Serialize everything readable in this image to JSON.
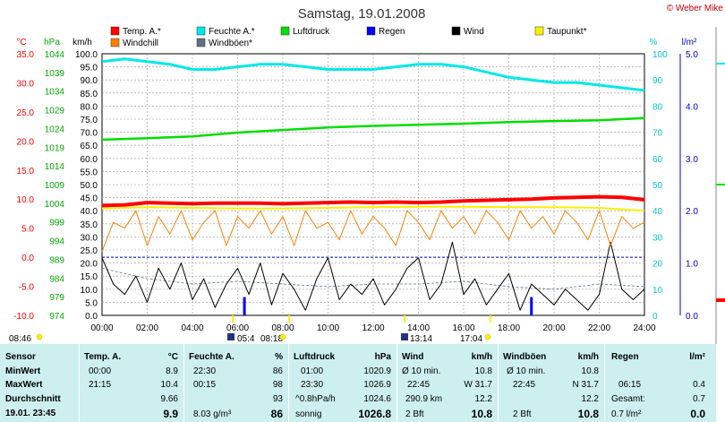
{
  "title": "Samstag, 19.01.2008",
  "copyright": "© Weber Mike",
  "legend": [
    {
      "label": "Temp. A.*",
      "color": "#ff0000"
    },
    {
      "label": "Feuchte A.*",
      "color": "#00e8e8"
    },
    {
      "label": "Luftdruck",
      "color": "#00dd00"
    },
    {
      "label": "Regen",
      "color": "#0000ff"
    },
    {
      "label": "Wind",
      "color": "#000000"
    },
    {
      "label": "Taupunkt*",
      "color": "#ffee00"
    },
    {
      "label": "Windchill",
      "color": "#ff8000"
    },
    {
      "label": "Windböen*",
      "color": "#607080"
    }
  ],
  "axes": {
    "temp_unit": "°C",
    "press_unit": "hPa",
    "wind_unit": "km/h",
    "hum_unit": "%",
    "rain_unit": "l/m²",
    "temp_ticks": [
      "35.0",
      "30.0",
      "25.0",
      "20.0",
      "15.0",
      "10.0",
      "5.0",
      "0.0",
      "-5.0",
      "-10.0"
    ],
    "press_ticks": [
      "1044",
      "1039",
      "1034",
      "1029",
      "1024",
      "1019",
      "1014",
      "1009",
      "1004",
      "999",
      "994",
      "989",
      "984",
      "979",
      "974"
    ],
    "wind_ticks": [
      "100.0",
      "95.0",
      "90.0",
      "85.0",
      "80.0",
      "75.0",
      "70.0",
      "65.0",
      "60.0",
      "55.0",
      "50.0",
      "45.0",
      "40.0",
      "35.0",
      "30.0",
      "25.0",
      "20.0",
      "15.0",
      "10.0",
      "5.0",
      "0.0"
    ],
    "hum_ticks": [
      "100",
      "90",
      "80",
      "70",
      "60",
      "50",
      "40",
      "30",
      "20",
      "10",
      "0"
    ],
    "rain_ticks": [
      "5.0",
      "4.0",
      "3.0",
      "2.0",
      "1.0",
      "0.0"
    ],
    "time_ticks": [
      "00:00",
      "02:00",
      "04:00",
      "06:00",
      "08:00",
      "10:00",
      "12:00",
      "14:00",
      "16:00",
      "18:00",
      "20:00",
      "22:00",
      "24:00"
    ]
  },
  "sun_moon": [
    {
      "label": "08:46"
    },
    {
      "label": "05:4"
    },
    {
      "label": "08:18"
    },
    {
      "label": "13:14"
    },
    {
      "label": "17:04"
    }
  ],
  "chart_data": {
    "type": "line",
    "x_unit": "hours",
    "xlim": [
      0,
      24
    ],
    "series": [
      {
        "name": "Temp. A.*",
        "unit": "°C",
        "color": "#ff0000",
        "x": [
          0,
          1,
          2,
          3,
          4,
          5,
          6,
          7,
          8,
          9,
          10,
          11,
          12,
          13,
          14,
          15,
          16,
          17,
          18,
          19,
          20,
          21,
          22,
          23,
          24
        ],
        "y": [
          8.9,
          9.0,
          9.4,
          9.3,
          9.2,
          9.3,
          9.3,
          9.3,
          9.2,
          9.3,
          9.4,
          9.5,
          9.4,
          9.5,
          9.4,
          9.5,
          9.7,
          9.8,
          9.9,
          10.0,
          10.2,
          10.3,
          10.4,
          10.3,
          9.9
        ]
      },
      {
        "name": "Feuchte A.*",
        "unit": "%",
        "color": "#00e8e8",
        "x": [
          0,
          1,
          2,
          3,
          4,
          5,
          6,
          7,
          8,
          9,
          10,
          11,
          12,
          13,
          14,
          15,
          16,
          17,
          18,
          19,
          20,
          21,
          22,
          23,
          24
        ],
        "y": [
          97,
          98,
          97,
          96,
          94,
          94,
          95,
          96,
          96,
          95,
          94,
          94,
          94,
          95,
          96,
          96,
          95,
          93,
          91,
          90,
          89,
          89,
          88,
          87,
          86
        ]
      },
      {
        "name": "Luftdruck",
        "unit": "hPa",
        "color": "#00dd00",
        "x": [
          0,
          2,
          4,
          6,
          8,
          10,
          12,
          14,
          16,
          18,
          20,
          22,
          24
        ],
        "y": [
          1021.0,
          1021.4,
          1021.9,
          1022.9,
          1023.6,
          1024.3,
          1024.7,
          1025.0,
          1025.3,
          1025.7,
          1026.0,
          1026.2,
          1026.8
        ]
      },
      {
        "name": "Taupunkt*",
        "unit": "°C",
        "color": "#ffee00",
        "x": [
          0,
          2,
          4,
          6,
          8,
          10,
          12,
          14,
          16,
          18,
          20,
          22,
          24
        ],
        "y": [
          8.4,
          8.6,
          8.5,
          8.4,
          8.4,
          8.5,
          8.6,
          8.7,
          8.7,
          8.6,
          8.6,
          8.5,
          8.0
        ]
      },
      {
        "name": "Windchill",
        "unit": "°C",
        "color": "#ff8000",
        "x": [
          0,
          0.5,
          1,
          1.5,
          2,
          2.5,
          3,
          3.5,
          4,
          4.5,
          5,
          5.5,
          6,
          6.5,
          7,
          7.5,
          8,
          8.5,
          9,
          9.5,
          10,
          10.5,
          11,
          11.5,
          12,
          12.5,
          13,
          13.5,
          14,
          14.5,
          15,
          15.5,
          16,
          16.5,
          17,
          17.5,
          18,
          18.5,
          19,
          19.5,
          20,
          20.5,
          21,
          21.5,
          22,
          22.5,
          23,
          23.5,
          24
        ],
        "y": [
          1.0,
          6.0,
          5.0,
          8.0,
          2.0,
          7.0,
          4.0,
          8.0,
          3.0,
          6.0,
          8.0,
          2.0,
          7.0,
          5.0,
          8.0,
          4.0,
          7.0,
          2.0,
          8.0,
          5.0,
          6.0,
          3.0,
          8.0,
          4.0,
          7.0,
          5.0,
          2.0,
          8.0,
          6.0,
          3.0,
          8.0,
          5.0,
          7.0,
          4.0,
          8.0,
          6.0,
          3.0,
          8.0,
          5.0,
          7.0,
          4.0,
          8.0,
          6.0,
          3.0,
          8.0,
          2.0,
          7.0,
          5.0,
          6.0
        ]
      },
      {
        "name": "Wind",
        "unit": "km/h",
        "color": "#000000",
        "x": [
          0,
          0.5,
          1,
          1.5,
          2,
          2.5,
          3,
          3.5,
          4,
          4.5,
          5,
          5.5,
          6,
          6.5,
          7,
          7.5,
          8,
          8.5,
          9,
          9.5,
          10,
          10.5,
          11,
          11.5,
          12,
          12.5,
          13,
          13.5,
          14,
          14.5,
          15,
          15.5,
          16,
          16.5,
          17,
          17.5,
          18,
          18.5,
          19,
          19.5,
          20,
          20.5,
          21,
          21.5,
          22,
          22.5,
          23,
          23.5,
          24
        ],
        "y": [
          22,
          12,
          8,
          15,
          5,
          18,
          10,
          20,
          6,
          14,
          3,
          12,
          18,
          8,
          20,
          4,
          16,
          10,
          2,
          14,
          22,
          6,
          12,
          8,
          14,
          4,
          10,
          18,
          22,
          6,
          12,
          28,
          8,
          14,
          4,
          10,
          16,
          2,
          12,
          8,
          4,
          10,
          6,
          2,
          8,
          28,
          10,
          6,
          10
        ]
      },
      {
        "name": "Windböen*",
        "unit": "km/h",
        "color": "#607080",
        "x": [
          0,
          2,
          4,
          6,
          8,
          10,
          12,
          14,
          16,
          18,
          20,
          22,
          24
        ],
        "y": [
          18,
          14,
          12,
          13,
          12,
          11,
          12,
          12,
          13,
          11,
          10,
          12,
          11
        ]
      },
      {
        "name": "Regen",
        "unit": "l/m²",
        "type": "bar",
        "color": "#0000ff",
        "x": [
          6.3,
          19.0
        ],
        "y": [
          0.35,
          0.35
        ]
      }
    ],
    "ylim_temp": [
      -10,
      35
    ],
    "ylim_press": [
      974,
      1044
    ],
    "ylim_wind": [
      0,
      100
    ],
    "ylim_hum": [
      0,
      100
    ],
    "ylim_rain": [
      0,
      5
    ]
  },
  "stats": {
    "headers": {
      "sensor": "Sensor",
      "temp": "Temp. A.",
      "temp_u": "°C",
      "hum": "Feuchte A.",
      "hum_u": "%",
      "press": "Luftdruck",
      "press_u": "hPa",
      "wind": "Wind",
      "wind_u": "km/h",
      "gust": "Windböen",
      "gust_u": "km/h",
      "rain": "Regen",
      "rain_u": "l/m²"
    },
    "rows": {
      "min": "MinWert",
      "max": "MaxWert",
      "avg": "Durchschnitt",
      "now": "19.01. 23:45"
    },
    "temp": {
      "min_t": "00:00",
      "min_v": "8.9",
      "max_t": "21:15",
      "max_v": "10.4",
      "avg_v": "9.66",
      "now_v": "9.9"
    },
    "hum": {
      "min_t": "22:30",
      "min_v": "86",
      "max_t": "00:15",
      "max_v": "98",
      "avg_v": "93",
      "now_l": "8.03 g/m³",
      "now_v": "86"
    },
    "press": {
      "min_t": "01:00",
      "min_v": "1020.9",
      "max_t": "23:30",
      "max_v": "1026.9",
      "avg_l": "^0.8hPa/h",
      "avg_v": "1024.6",
      "now_l": "sonnig",
      "now_v": "1026.8"
    },
    "wind": {
      "r1_l": "Ø 10 min.",
      "r1_v": "10.8",
      "r2_l": "22:45",
      "r2_v": "W 31.7",
      "r3_l": "290.9 km",
      "r3_v": "12.2",
      "r4_l": "2 Bft",
      "r4_v": "10.8"
    },
    "gust": {
      "r1_l": "Ø 10 min.",
      "r1_v": "10.8",
      "r2_l": "22:45",
      "r2_v": "N 31.7",
      "r3_v": "12.2",
      "r4_l": "2 Bft",
      "r4_v": "10.8"
    },
    "rain": {
      "r2_l": "06:15",
      "r2_v": "0.4",
      "r3_l": "Gesamt:",
      "r3_v": "0.7",
      "r4_l": "0.7 l/m²",
      "r4_v": "0.0"
    }
  }
}
